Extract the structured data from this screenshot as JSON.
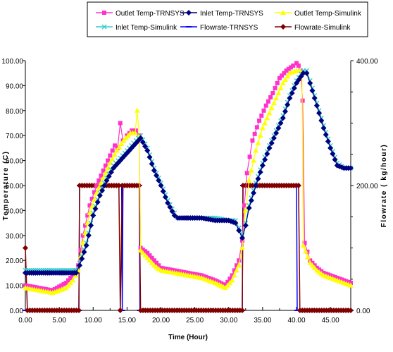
{
  "chart_data": {
    "type": "line",
    "xlabel": "Time (Hour)",
    "ylabel": "Temperature (C)",
    "y2label": "Flowrate ( kg/hour)",
    "xlim": [
      0,
      48
    ],
    "ylim": [
      0,
      100
    ],
    "y2lim": [
      0,
      400
    ],
    "x_ticks": [
      "0.00",
      "5.00",
      "10.00",
      "15.00",
      "20.00",
      "25.00",
      "30.00",
      "35.00",
      "40.00",
      "45.00"
    ],
    "y_ticks": [
      "0.00",
      "10.00",
      "20.00",
      "30.00",
      "40.00",
      "50.00",
      "60.00",
      "70.00",
      "80.00",
      "90.00",
      "100.00"
    ],
    "y2_ticks": [
      "0.00",
      "200.00",
      "400.00"
    ],
    "legend_placement": "top",
    "grid": false,
    "series": [
      {
        "name": "Outlet Temp-TRNSYS",
        "color": "#ff33cc",
        "marker": "square",
        "axis": "left",
        "points": [
          [
            0,
            10
          ],
          [
            2,
            9
          ],
          [
            4,
            8
          ],
          [
            6,
            11
          ],
          [
            7,
            14
          ],
          [
            7.8,
            18
          ],
          [
            8.5,
            30
          ],
          [
            9.5,
            42
          ],
          [
            10.5,
            50
          ],
          [
            11.5,
            56
          ],
          [
            12.5,
            62
          ],
          [
            13.2,
            66
          ],
          [
            13.6,
            65
          ],
          [
            14,
            75
          ],
          [
            14.4,
            68
          ],
          [
            15,
            70
          ],
          [
            15.7,
            72
          ],
          [
            16.3,
            72
          ],
          [
            16.8,
            70
          ],
          [
            17,
            25
          ],
          [
            18,
            23
          ],
          [
            19,
            20
          ],
          [
            20,
            17
          ],
          [
            22,
            16
          ],
          [
            24,
            15
          ],
          [
            26,
            14
          ],
          [
            28,
            12
          ],
          [
            29.5,
            10
          ],
          [
            30.5,
            14
          ],
          [
            31.5,
            20
          ],
          [
            32,
            28
          ],
          [
            32.3,
            42
          ],
          [
            32.7,
            55
          ],
          [
            33.5,
            68
          ],
          [
            34.5,
            76
          ],
          [
            35.5,
            82
          ],
          [
            36.5,
            87
          ],
          [
            37.5,
            93
          ],
          [
            38.5,
            96
          ],
          [
            39.5,
            98
          ],
          [
            40,
            99
          ],
          [
            40.3,
            98
          ],
          [
            40.6,
            96
          ],
          [
            40.9,
            84
          ],
          [
            41.2,
            27
          ],
          [
            42,
            20
          ],
          [
            43,
            17
          ],
          [
            44,
            15
          ],
          [
            46,
            13
          ],
          [
            48,
            11
          ]
        ]
      },
      {
        "name": "Inlet Temp-TRNSYS",
        "color": "#000080",
        "marker": "diamond",
        "axis": "left",
        "points": [
          [
            0,
            15
          ],
          [
            7.5,
            15
          ],
          [
            8,
            18
          ],
          [
            9,
            26
          ],
          [
            10,
            38
          ],
          [
            11,
            46
          ],
          [
            12,
            52
          ],
          [
            13,
            57
          ],
          [
            14,
            60
          ],
          [
            15,
            63
          ],
          [
            16,
            66
          ],
          [
            17,
            69
          ],
          [
            18,
            64
          ],
          [
            19,
            56
          ],
          [
            20,
            50
          ],
          [
            21,
            43
          ],
          [
            22,
            38
          ],
          [
            22.5,
            37
          ],
          [
            24,
            37
          ],
          [
            26,
            37
          ],
          [
            28,
            36
          ],
          [
            30,
            36
          ],
          [
            31,
            35
          ],
          [
            31.5,
            32
          ],
          [
            32,
            29
          ],
          [
            32.5,
            34
          ],
          [
            33,
            41
          ],
          [
            34,
            50
          ],
          [
            35,
            58
          ],
          [
            36,
            65
          ],
          [
            37,
            71
          ],
          [
            38,
            77
          ],
          [
            39,
            85
          ],
          [
            40,
            91
          ],
          [
            41,
            95
          ],
          [
            41.5,
            95
          ],
          [
            42,
            91
          ],
          [
            43,
            82
          ],
          [
            44,
            73
          ],
          [
            45,
            65
          ],
          [
            46,
            58
          ],
          [
            47,
            57
          ],
          [
            48,
            57
          ]
        ]
      },
      {
        "name": "Outlet Temp-Simulink",
        "color": "#ffff00",
        "marker": "triangle",
        "axis": "left",
        "points": [
          [
            0,
            9
          ],
          [
            2,
            8
          ],
          [
            4,
            7
          ],
          [
            6,
            9
          ],
          [
            7,
            12
          ],
          [
            7.8,
            16
          ],
          [
            8.5,
            27
          ],
          [
            9.5,
            39
          ],
          [
            10.5,
            47
          ],
          [
            11.5,
            53
          ],
          [
            12.5,
            59
          ],
          [
            13.5,
            64
          ],
          [
            14.5,
            68
          ],
          [
            15.5,
            71
          ],
          [
            16.2,
            71
          ],
          [
            16.5,
            80
          ],
          [
            16.8,
            70
          ],
          [
            17,
            24
          ],
          [
            18,
            21
          ],
          [
            19,
            18
          ],
          [
            20,
            16
          ],
          [
            22,
            15
          ],
          [
            24,
            14
          ],
          [
            26,
            13
          ],
          [
            28,
            11
          ],
          [
            29.5,
            9
          ],
          [
            30.5,
            12
          ],
          [
            31.5,
            18
          ],
          [
            32,
            25
          ],
          [
            32.5,
            40
          ],
          [
            33,
            52
          ],
          [
            34,
            64
          ],
          [
            35,
            73
          ],
          [
            36,
            79
          ],
          [
            37,
            85
          ],
          [
            38,
            91
          ],
          [
            39,
            95
          ],
          [
            40,
            96
          ],
          [
            40.5,
            96
          ],
          [
            40.8,
            95
          ],
          [
            41,
            26
          ],
          [
            42,
            19
          ],
          [
            43,
            16
          ],
          [
            44,
            14
          ],
          [
            46,
            12
          ],
          [
            48,
            10
          ]
        ]
      },
      {
        "name": "Inlet Temp-Simulink",
        "color": "#33cccc",
        "marker": "x",
        "axis": "left",
        "points": [
          [
            0,
            16
          ],
          [
            7.5,
            16
          ],
          [
            8,
            19
          ],
          [
            9,
            27
          ],
          [
            10,
            39
          ],
          [
            11,
            47
          ],
          [
            12,
            53
          ],
          [
            13,
            58
          ],
          [
            14,
            61
          ],
          [
            15,
            64
          ],
          [
            16,
            67
          ],
          [
            17,
            70
          ],
          [
            18,
            65
          ],
          [
            19,
            57
          ],
          [
            20,
            51
          ],
          [
            21,
            44
          ],
          [
            22,
            39
          ],
          [
            22.5,
            37
          ],
          [
            24,
            37
          ],
          [
            26,
            37
          ],
          [
            28,
            37
          ],
          [
            30,
            36
          ],
          [
            31,
            36
          ],
          [
            31.5,
            33
          ],
          [
            32,
            30
          ],
          [
            32.5,
            35
          ],
          [
            33,
            42
          ],
          [
            34,
            51
          ],
          [
            35,
            59
          ],
          [
            36,
            66
          ],
          [
            37,
            72
          ],
          [
            38,
            78
          ],
          [
            39,
            86
          ],
          [
            40,
            92
          ],
          [
            41,
            96
          ],
          [
            41.5,
            96
          ],
          [
            42,
            92
          ],
          [
            43,
            83
          ],
          [
            44,
            74
          ],
          [
            45,
            66
          ],
          [
            46,
            59
          ],
          [
            47,
            57
          ],
          [
            48,
            57
          ]
        ]
      },
      {
        "name": "Flowrate-TRNSYS",
        "color": "#0000ff",
        "marker": "dash",
        "axis": "right",
        "points": [
          [
            0,
            0
          ],
          [
            7.9,
            0
          ],
          [
            8,
            200
          ],
          [
            14.2,
            200
          ],
          [
            14.3,
            0
          ],
          [
            14.4,
            200
          ],
          [
            16.8,
            200
          ],
          [
            16.9,
            0
          ],
          [
            32,
            0
          ],
          [
            32.1,
            200
          ],
          [
            40,
            200
          ],
          [
            40.1,
            0
          ],
          [
            48,
            0
          ]
        ]
      },
      {
        "name": "Flowrate-Simulink",
        "color": "#800000",
        "marker": "diamond",
        "axis": "right",
        "points": [
          [
            0,
            100
          ],
          [
            0.3,
            0
          ],
          [
            7.9,
            0
          ],
          [
            8,
            200
          ],
          [
            13.8,
            200
          ],
          [
            14,
            0
          ],
          [
            14.3,
            200
          ],
          [
            16.8,
            200
          ],
          [
            17,
            0
          ],
          [
            32,
            0
          ],
          [
            32.1,
            200
          ],
          [
            40.3,
            200
          ],
          [
            40.5,
            0
          ],
          [
            48,
            0
          ]
        ]
      }
    ]
  }
}
